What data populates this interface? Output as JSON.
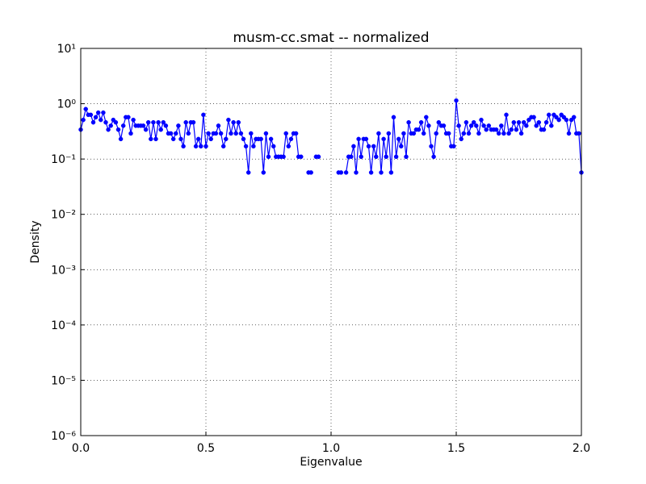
{
  "chart_data": {
    "type": "line",
    "title": "musm-cc.smat -- normalized",
    "x_label": "Eigenvalue",
    "y_label": "Density",
    "log_y": true,
    "grid": true,
    "xlim": [
      0,
      2
    ],
    "ylim": [
      1e-06,
      10
    ],
    "xticks": [
      {
        "value": 0,
        "label": "0.0"
      },
      {
        "value": 0.5,
        "label": "0.5"
      },
      {
        "value": 1,
        "label": "1.0"
      },
      {
        "value": 1.5,
        "label": "1.5"
      },
      {
        "value": 2,
        "label": "2.0"
      }
    ],
    "yticks": [
      {
        "value": 1e-06,
        "label": "10⁻⁶"
      },
      {
        "value": 1e-05,
        "label": "10⁻⁵"
      },
      {
        "value": 0.0001,
        "label": "10⁻⁴"
      },
      {
        "value": 0.001,
        "label": "10⁻³"
      },
      {
        "value": 0.01,
        "label": "10⁻²"
      },
      {
        "value": 0.1,
        "label": "10⁻¹"
      },
      {
        "value": 1,
        "label": "10⁰"
      },
      {
        "value": 10,
        "label": "10¹"
      }
    ],
    "x": [
      0,
      0.01,
      0.02,
      0.03,
      0.04,
      0.05,
      0.06,
      0.07,
      0.08,
      0.09,
      0.1,
      0.11,
      0.12,
      0.13,
      0.14,
      0.15,
      0.16,
      0.17,
      0.18,
      0.19,
      0.2,
      0.21,
      0.22,
      0.23,
      0.24,
      0.25,
      0.26,
      0.27,
      0.28,
      0.29,
      0.3,
      0.31,
      0.32,
      0.33,
      0.34,
      0.35,
      0.36,
      0.37,
      0.38,
      0.39,
      0.4,
      0.41,
      0.42,
      0.43,
      0.44,
      0.45,
      0.46,
      0.47,
      0.48,
      0.49,
      0.5,
      0.51,
      0.52,
      0.53,
      0.54,
      0.55,
      0.56,
      0.57,
      0.58,
      0.59,
      0.6,
      0.61,
      0.62,
      0.63,
      0.64,
      0.65,
      0.66,
      0.67,
      0.68,
      0.69,
      0.7,
      0.71,
      0.72,
      0.73,
      0.74,
      0.75,
      0.76,
      0.77,
      0.78,
      0.79,
      0.8,
      0.81,
      0.82,
      0.83,
      0.84,
      0.85,
      0.86,
      0.87,
      0.88,
      0.89,
      0.9,
      0.91,
      0.92,
      0.93,
      0.94,
      0.95,
      0.96,
      0.97,
      0.98,
      0.99,
      1,
      1.01,
      1.02,
      1.03,
      1.04,
      1.05,
      1.06,
      1.07,
      1.08,
      1.09,
      1.1,
      1.11,
      1.12,
      1.13,
      1.14,
      1.15,
      1.16,
      1.17,
      1.18,
      1.19,
      1.2,
      1.21,
      1.22,
      1.23,
      1.24,
      1.25,
      1.26,
      1.27,
      1.28,
      1.29,
      1.3,
      1.31,
      1.32,
      1.33,
      1.34,
      1.35,
      1.36,
      1.37,
      1.38,
      1.39,
      1.4,
      1.41,
      1.42,
      1.43,
      1.44,
      1.45,
      1.46,
      1.47,
      1.48,
      1.49,
      1.5,
      1.51,
      1.52,
      1.53,
      1.54,
      1.55,
      1.56,
      1.57,
      1.58,
      1.59,
      1.6,
      1.61,
      1.62,
      1.63,
      1.64,
      1.65,
      1.66,
      1.67,
      1.68,
      1.69,
      1.7,
      1.71,
      1.72,
      1.73,
      1.74,
      1.75,
      1.76,
      1.77,
      1.78,
      1.79,
      1.8,
      1.81,
      1.82,
      1.83,
      1.84,
      1.85,
      1.86,
      1.87,
      1.88,
      1.89,
      1.9,
      1.91,
      1.92,
      1.93,
      1.94,
      1.95,
      1.96,
      1.97,
      1.98,
      1.99,
      2
    ],
    "series": [
      {
        "color": "#0000ff",
        "values": [
          0.34,
          0.51,
          0.8,
          0.63,
          0.63,
          0.46,
          0.57,
          0.69,
          0.51,
          0.69,
          0.46,
          0.34,
          0.4,
          0.51,
          0.46,
          0.34,
          0.23,
          0.4,
          0.57,
          0.57,
          0.29,
          0.51,
          0.4,
          0.4,
          0.4,
          0.4,
          0.34,
          0.46,
          0.23,
          0.46,
          0.23,
          0.46,
          0.34,
          0.46,
          0.4,
          0.29,
          0.29,
          0.23,
          0.29,
          0.4,
          0.23,
          0.17,
          0.46,
          0.29,
          0.46,
          0.46,
          0.17,
          0.23,
          0.17,
          0.63,
          0.17,
          0.29,
          0.23,
          0.29,
          0.29,
          0.4,
          0.29,
          0.17,
          0.23,
          0.51,
          0.29,
          0.46,
          0.29,
          0.46,
          0.29,
          0.23,
          0.17,
          0.057,
          0.29,
          0.17,
          0.23,
          0.23,
          0.23,
          0.057,
          0.29,
          0.11,
          0.23,
          0.17,
          0.11,
          0.11,
          0.11,
          0.11,
          0.29,
          0.17,
          0.23,
          0.29,
          0.29,
          0.11,
          0.11,
          null,
          null,
          0.057,
          0.057,
          null,
          0.11,
          0.11,
          null,
          null,
          null,
          null,
          null,
          null,
          null,
          0.057,
          0.057,
          null,
          0.057,
          0.11,
          0.11,
          0.17,
          0.057,
          0.23,
          0.11,
          0.23,
          0.23,
          0.17,
          0.057,
          0.17,
          0.11,
          0.29,
          0.057,
          0.23,
          0.11,
          0.29,
          0.057,
          0.57,
          0.11,
          0.23,
          0.17,
          0.29,
          0.11,
          0.46,
          0.29,
          0.29,
          0.34,
          0.34,
          0.46,
          0.29,
          0.57,
          0.4,
          0.17,
          0.11,
          0.29,
          0.46,
          0.4,
          0.4,
          0.29,
          0.29,
          0.17,
          0.17,
          1.14,
          0.4,
          0.23,
          0.29,
          0.46,
          0.29,
          0.4,
          0.46,
          0.4,
          0.29,
          0.51,
          0.4,
          0.34,
          0.4,
          0.34,
          0.34,
          0.34,
          0.29,
          0.4,
          0.29,
          0.63,
          0.29,
          0.34,
          0.46,
          0.34,
          0.46,
          0.29,
          0.46,
          0.4,
          0.51,
          0.57,
          0.57,
          0.4,
          0.46,
          0.34,
          0.34,
          0.46,
          0.63,
          0.4,
          0.63,
          0.57,
          0.51,
          0.63,
          0.57,
          0.51,
          0.29,
          0.51,
          0.57,
          0.29,
          0.29,
          0.057
        ]
      }
    ]
  }
}
